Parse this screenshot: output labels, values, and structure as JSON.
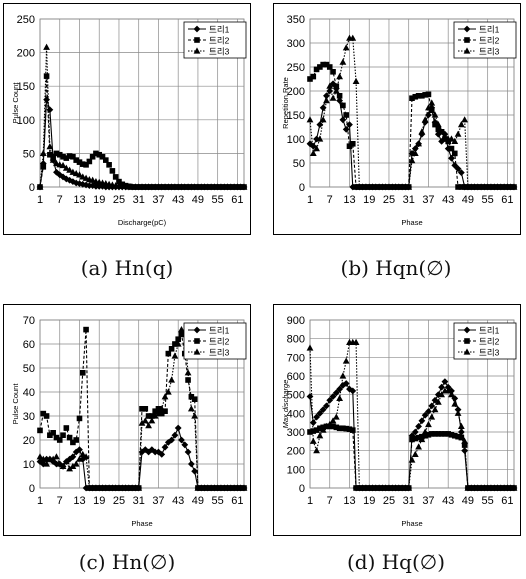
{
  "captions": [
    "(a)  Hn(q)",
    "(b)  Hqn(∅)",
    "(c)  Hn(∅)",
    "(d)  Hq(∅)"
  ],
  "legend_labels": [
    "트리1",
    "트리2",
    "트리3"
  ],
  "chart_data": [
    {
      "type": "line",
      "xlabel": "Discharge(pC)",
      "ylabel": "Pulse Count",
      "ylim": [
        0,
        250
      ],
      "yticks": [
        0,
        50,
        100,
        150,
        200,
        250
      ],
      "x_tick_labels": [
        "1",
        "7",
        "13",
        "19",
        "25",
        "31",
        "37",
        "43",
        "49",
        "55",
        "61"
      ],
      "grid": true,
      "legend": "top-right",
      "x": [
        1,
        2,
        3,
        4,
        5,
        6,
        7,
        8,
        9,
        10,
        11,
        12,
        13,
        14,
        15,
        16,
        17,
        18,
        19,
        20,
        21,
        22,
        23,
        24,
        25,
        26,
        27,
        28,
        29,
        30,
        31,
        32,
        33,
        34,
        35,
        36,
        37,
        38,
        39,
        40,
        41,
        42,
        43,
        44,
        45,
        46,
        47,
        48,
        49,
        50,
        51,
        52,
        53,
        54,
        55,
        56,
        57,
        58,
        59,
        60,
        61,
        62,
        63
      ],
      "series": [
        {
          "name": "트리1",
          "marker": "diamond",
          "values": [
            0,
            35,
            130,
            115,
            40,
            22,
            18,
            15,
            12,
            10,
            8,
            6,
            5,
            4,
            3,
            2,
            2,
            1,
            1,
            1,
            0,
            0,
            0,
            0,
            0,
            0,
            0,
            0,
            0,
            0,
            0,
            0,
            0,
            0,
            0,
            0,
            0,
            0,
            0,
            0,
            0,
            0,
            0,
            0,
            0,
            0,
            0,
            0,
            0,
            0,
            0,
            0,
            0,
            0,
            0,
            0,
            0,
            0,
            0,
            0,
            0,
            0,
            0
          ]
        },
        {
          "name": "트리2",
          "marker": "square",
          "values": [
            0,
            30,
            165,
            48,
            45,
            50,
            48,
            45,
            43,
            46,
            45,
            40,
            37,
            34,
            33,
            38,
            45,
            50,
            48,
            45,
            40,
            33,
            24,
            15,
            8,
            4,
            2,
            1,
            0,
            0,
            0,
            0,
            0,
            0,
            0,
            0,
            0,
            0,
            0,
            0,
            0,
            0,
            0,
            0,
            0,
            0,
            0,
            0,
            0,
            0,
            0,
            0,
            0,
            0,
            0,
            0,
            0,
            0,
            0,
            0,
            0,
            0,
            0
          ]
        },
        {
          "name": "트리3",
          "marker": "triangle",
          "values": [
            0,
            50,
            208,
            60,
            40,
            35,
            33,
            32,
            28,
            25,
            22,
            20,
            18,
            15,
            13,
            11,
            10,
            8,
            7,
            6,
            5,
            4,
            3,
            2,
            2,
            1,
            1,
            0,
            0,
            0,
            0,
            0,
            0,
            0,
            0,
            0,
            0,
            0,
            0,
            0,
            0,
            0,
            0,
            0,
            0,
            0,
            0,
            0,
            0,
            0,
            0,
            0,
            0,
            0,
            0,
            0,
            0,
            0,
            0,
            0,
            0,
            0,
            0
          ]
        }
      ]
    },
    {
      "type": "line",
      "xlabel": "Phase",
      "ylabel": "Repetition Rate",
      "ylim": [
        0,
        350
      ],
      "yticks": [
        0,
        50,
        100,
        150,
        200,
        250,
        300,
        350
      ],
      "x_tick_labels": [
        "1",
        "7",
        "13",
        "19",
        "25",
        "31",
        "37",
        "43",
        "49",
        "55",
        "61"
      ],
      "grid": true,
      "legend": "top-right",
      "x": [
        1,
        2,
        3,
        4,
        5,
        6,
        7,
        8,
        9,
        10,
        11,
        12,
        13,
        14,
        15,
        16,
        17,
        18,
        19,
        20,
        21,
        22,
        23,
        24,
        25,
        26,
        27,
        28,
        29,
        30,
        31,
        32,
        33,
        34,
        35,
        36,
        37,
        38,
        39,
        40,
        41,
        42,
        43,
        44,
        45,
        46,
        47,
        48,
        49,
        50,
        51,
        52,
        53,
        54,
        55,
        56,
        57,
        58,
        59,
        60,
        61,
        62,
        63
      ],
      "series": [
        {
          "name": "트리1",
          "marker": "diamond",
          "values": [
            90,
            85,
            100,
            130,
            165,
            190,
            200,
            215,
            205,
            180,
            140,
            120,
            130,
            0,
            0,
            0,
            0,
            0,
            0,
            0,
            0,
            0,
            0,
            0,
            0,
            0,
            0,
            0,
            0,
            0,
            0,
            70,
            80,
            90,
            110,
            135,
            150,
            165,
            135,
            110,
            95,
            110,
            80,
            60,
            45,
            38,
            30,
            0,
            0,
            0,
            0,
            0,
            0,
            0,
            0,
            0,
            0,
            0,
            0,
            0,
            0,
            0,
            0
          ]
        },
        {
          "name": "트리2",
          "marker": "square",
          "values": [
            225,
            230,
            245,
            250,
            255,
            255,
            250,
            240,
            210,
            190,
            170,
            150,
            85,
            90,
            0,
            0,
            0,
            0,
            0,
            0,
            0,
            0,
            0,
            0,
            0,
            0,
            0,
            0,
            0,
            0,
            0,
            185,
            188,
            190,
            190,
            192,
            193,
            160,
            130,
            120,
            115,
            100,
            95,
            80,
            70,
            0,
            0,
            0,
            0,
            0,
            0,
            0,
            0,
            0,
            0,
            0,
            0,
            0,
            0,
            0,
            0,
            0,
            0
          ]
        },
        {
          "name": "트리3",
          "marker": "triangle",
          "values": [
            140,
            70,
            80,
            100,
            140,
            180,
            210,
            185,
            200,
            230,
            260,
            290,
            310,
            310,
            220,
            0,
            0,
            0,
            0,
            0,
            0,
            0,
            0,
            0,
            0,
            0,
            0,
            0,
            0,
            0,
            0,
            55,
            70,
            90,
            115,
            140,
            165,
            175,
            150,
            130,
            115,
            105,
            100,
            100,
            95,
            110,
            130,
            140,
            0,
            0,
            0,
            0,
            0,
            0,
            0,
            0,
            0,
            0,
            0,
            0,
            0,
            0,
            0
          ]
        }
      ]
    },
    {
      "type": "line",
      "xlabel": "Phase",
      "ylabel": "Pulse Count",
      "ylim": [
        0,
        70
      ],
      "yticks": [
        0,
        10,
        20,
        30,
        40,
        50,
        60,
        70
      ],
      "x_tick_labels": [
        "1",
        "7",
        "13",
        "19",
        "25",
        "31",
        "37",
        "43",
        "49",
        "55",
        "61"
      ],
      "grid": true,
      "legend": "top-right",
      "x": [
        1,
        2,
        3,
        4,
        5,
        6,
        7,
        8,
        9,
        10,
        11,
        12,
        13,
        14,
        15,
        16,
        17,
        18,
        19,
        20,
        21,
        22,
        23,
        24,
        25,
        26,
        27,
        28,
        29,
        30,
        31,
        32,
        33,
        34,
        35,
        36,
        37,
        38,
        39,
        40,
        41,
        42,
        43,
        44,
        45,
        46,
        47,
        48,
        49,
        50,
        51,
        52,
        53,
        54,
        55,
        56,
        57,
        58,
        59,
        60,
        61,
        62,
        63
      ],
      "series": [
        {
          "name": "트리1",
          "marker": "diamond",
          "values": [
            11,
            10,
            12,
            12,
            11,
            10,
            10,
            9,
            11,
            12,
            13,
            15,
            16,
            12,
            0,
            0,
            0,
            0,
            0,
            0,
            0,
            0,
            0,
            0,
            0,
            0,
            0,
            0,
            0,
            0,
            0,
            15,
            16,
            15,
            16,
            15,
            15,
            14,
            17,
            19,
            20,
            22,
            25,
            20,
            18,
            15,
            10,
            7,
            0,
            0,
            0,
            0,
            0,
            0,
            0,
            0,
            0,
            0,
            0,
            0,
            0,
            0,
            0
          ]
        },
        {
          "name": "트리2",
          "marker": "square",
          "values": [
            24,
            31,
            30,
            22,
            23,
            21,
            20,
            22,
            25,
            21,
            19,
            20,
            29,
            48,
            66,
            0,
            0,
            0,
            0,
            0,
            0,
            0,
            0,
            0,
            0,
            0,
            0,
            0,
            0,
            0,
            0,
            33,
            33,
            30,
            30,
            32,
            33,
            31,
            32,
            56,
            58,
            60,
            62,
            64,
            56,
            45,
            38,
            37,
            0,
            0,
            0,
            0,
            0,
            0,
            0,
            0,
            0,
            0,
            0,
            0,
            0,
            0,
            0
          ]
        },
        {
          "name": "트리3",
          "marker": "triangle",
          "values": [
            13,
            12,
            10,
            12,
            12,
            13,
            10,
            9,
            11,
            8,
            9,
            10,
            12,
            14,
            13,
            0,
            0,
            0,
            0,
            0,
            0,
            0,
            0,
            0,
            0,
            0,
            0,
            0,
            0,
            0,
            0,
            27,
            28,
            26,
            28,
            30,
            31,
            33,
            38,
            40,
            45,
            55,
            60,
            66,
            64,
            48,
            33,
            30,
            0,
            0,
            0,
            0,
            0,
            0,
            0,
            0,
            0,
            0,
            0,
            0,
            0,
            0,
            0
          ]
        }
      ]
    },
    {
      "type": "line",
      "xlabel": "Phase",
      "ylabel": "Max discharge",
      "ylim": [
        0,
        900
      ],
      "yticks": [
        0,
        100,
        200,
        300,
        400,
        500,
        600,
        700,
        800,
        900
      ],
      "x_tick_labels": [
        "1",
        "7",
        "13",
        "19",
        "25",
        "31",
        "37",
        "43",
        "49",
        "55",
        "61"
      ],
      "grid": true,
      "legend": "top-right",
      "x": [
        1,
        2,
        3,
        4,
        5,
        6,
        7,
        8,
        9,
        10,
        11,
        12,
        13,
        14,
        15,
        16,
        17,
        18,
        19,
        20,
        21,
        22,
        23,
        24,
        25,
        26,
        27,
        28,
        29,
        30,
        31,
        32,
        33,
        34,
        35,
        36,
        37,
        38,
        39,
        40,
        41,
        42,
        43,
        44,
        45,
        46,
        47,
        48,
        49,
        50,
        51,
        52,
        53,
        54,
        55,
        56,
        57,
        58,
        59,
        60,
        61,
        62,
        63
      ],
      "series": [
        {
          "name": "트리1",
          "marker": "diamond",
          "values": [
            490,
            350,
            380,
            400,
            420,
            440,
            470,
            490,
            510,
            530,
            550,
            560,
            530,
            520,
            0,
            0,
            0,
            0,
            0,
            0,
            0,
            0,
            0,
            0,
            0,
            0,
            0,
            0,
            0,
            0,
            0,
            280,
            300,
            330,
            360,
            390,
            410,
            440,
            470,
            500,
            540,
            570,
            540,
            520,
            480,
            420,
            300,
            200,
            0,
            0,
            0,
            0,
            0,
            0,
            0,
            0,
            0,
            0,
            0,
            0,
            0,
            0,
            0
          ]
        },
        {
          "name": "트리2",
          "marker": "square",
          "values": [
            300,
            305,
            310,
            320,
            325,
            330,
            330,
            330,
            325,
            320,
            320,
            318,
            315,
            310,
            0,
            0,
            0,
            0,
            0,
            0,
            0,
            0,
            0,
            0,
            0,
            0,
            0,
            0,
            0,
            0,
            0,
            260,
            265,
            270,
            275,
            280,
            285,
            290,
            290,
            290,
            290,
            290,
            290,
            285,
            280,
            275,
            270,
            230,
            0,
            0,
            0,
            0,
            0,
            0,
            0,
            0,
            0,
            0,
            0,
            0,
            0,
            0,
            0
          ]
        },
        {
          "name": "트리3",
          "marker": "triangle",
          "values": [
            750,
            250,
            200,
            280,
            310,
            330,
            340,
            360,
            380,
            480,
            600,
            680,
            780,
            780,
            780,
            0,
            0,
            0,
            0,
            0,
            0,
            0,
            0,
            0,
            0,
            0,
            0,
            0,
            0,
            0,
            0,
            150,
            180,
            220,
            260,
            300,
            340,
            380,
            420,
            460,
            500,
            520,
            520,
            500,
            450,
            400,
            330,
            250,
            0,
            0,
            0,
            0,
            0,
            0,
            0,
            0,
            0,
            0,
            0,
            0,
            0,
            0,
            0
          ]
        }
      ]
    }
  ]
}
